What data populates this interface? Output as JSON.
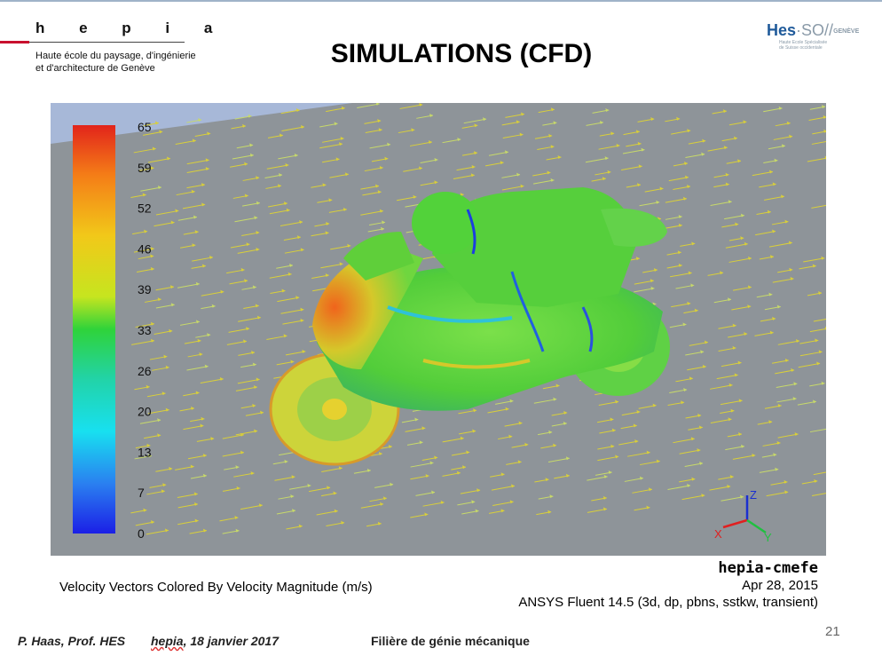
{
  "header": {
    "logo_text": "h e p i a",
    "school_line": "Haute école du paysage, d'ingénierie\net d'architecture de Genève",
    "title": "SIMULATIONS (CFD)",
    "partner_logo": {
      "main": "Hes",
      "so": "·SO",
      "city": "GENÈVE",
      "tagline": "Haute Ecole Spécialisée\nde Suisse occidentale"
    }
  },
  "simulation": {
    "colorbar_ticks": [
      "65",
      "59",
      "52",
      "46",
      "39",
      "33",
      "26",
      "20",
      "13",
      "7",
      "0"
    ],
    "colorbar_range": [
      0,
      65
    ],
    "axes": {
      "x": "X",
      "y": "Y",
      "z": "Z"
    },
    "caption": "Velocity Vectors Colored By Velocity Magnitude (m/s)",
    "brand": "hepia-cmefe",
    "date": "Apr 28, 2015",
    "solver": "ANSYS Fluent 14.5 (3d, dp, pbns, sstkw, transient)"
  },
  "footer": {
    "author": "P. Haas, Prof. HES",
    "date_place": "hepia",
    "date_rest": ", 18 janvier 2017",
    "department": "Filière de génie mécanique",
    "page_number": "21"
  },
  "colors": {
    "accent_red": "#c8102e",
    "partner_blue": "#1f5a9a",
    "background_gray": "#8e9499"
  }
}
